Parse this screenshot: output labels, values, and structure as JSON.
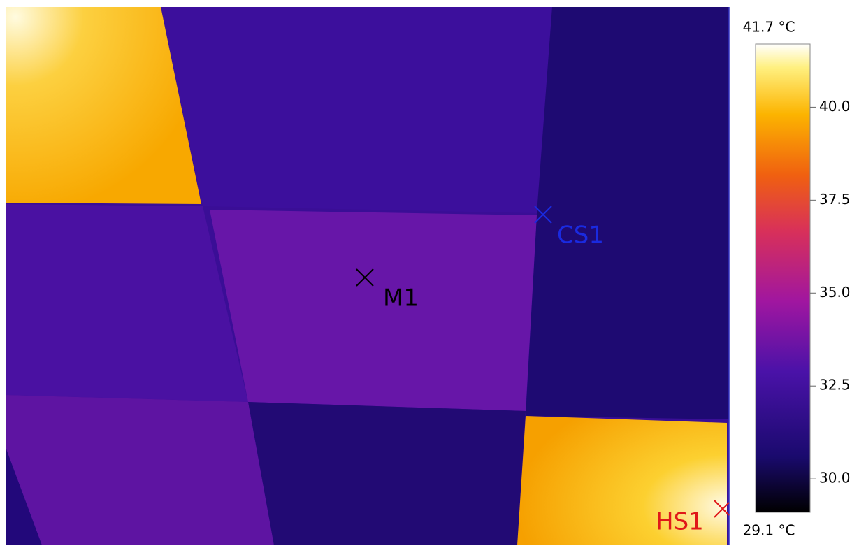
{
  "image": {
    "markers": [
      {
        "label": "M1"
      },
      {
        "label": "CS1"
      },
      {
        "label": "HS1"
      }
    ]
  },
  "colorbar": {
    "max_label": "41.7 °C",
    "min_label": "29.1 °C",
    "range": [
      29.1,
      41.7
    ],
    "ticks": [
      {
        "value": 30,
        "label": "30.0"
      },
      {
        "value": 32.5,
        "label": "32.5"
      },
      {
        "value": 35,
        "label": "35.0"
      },
      {
        "value": 37.5,
        "label": "37.5"
      },
      {
        "value": 40,
        "label": "40.0"
      }
    ]
  }
}
